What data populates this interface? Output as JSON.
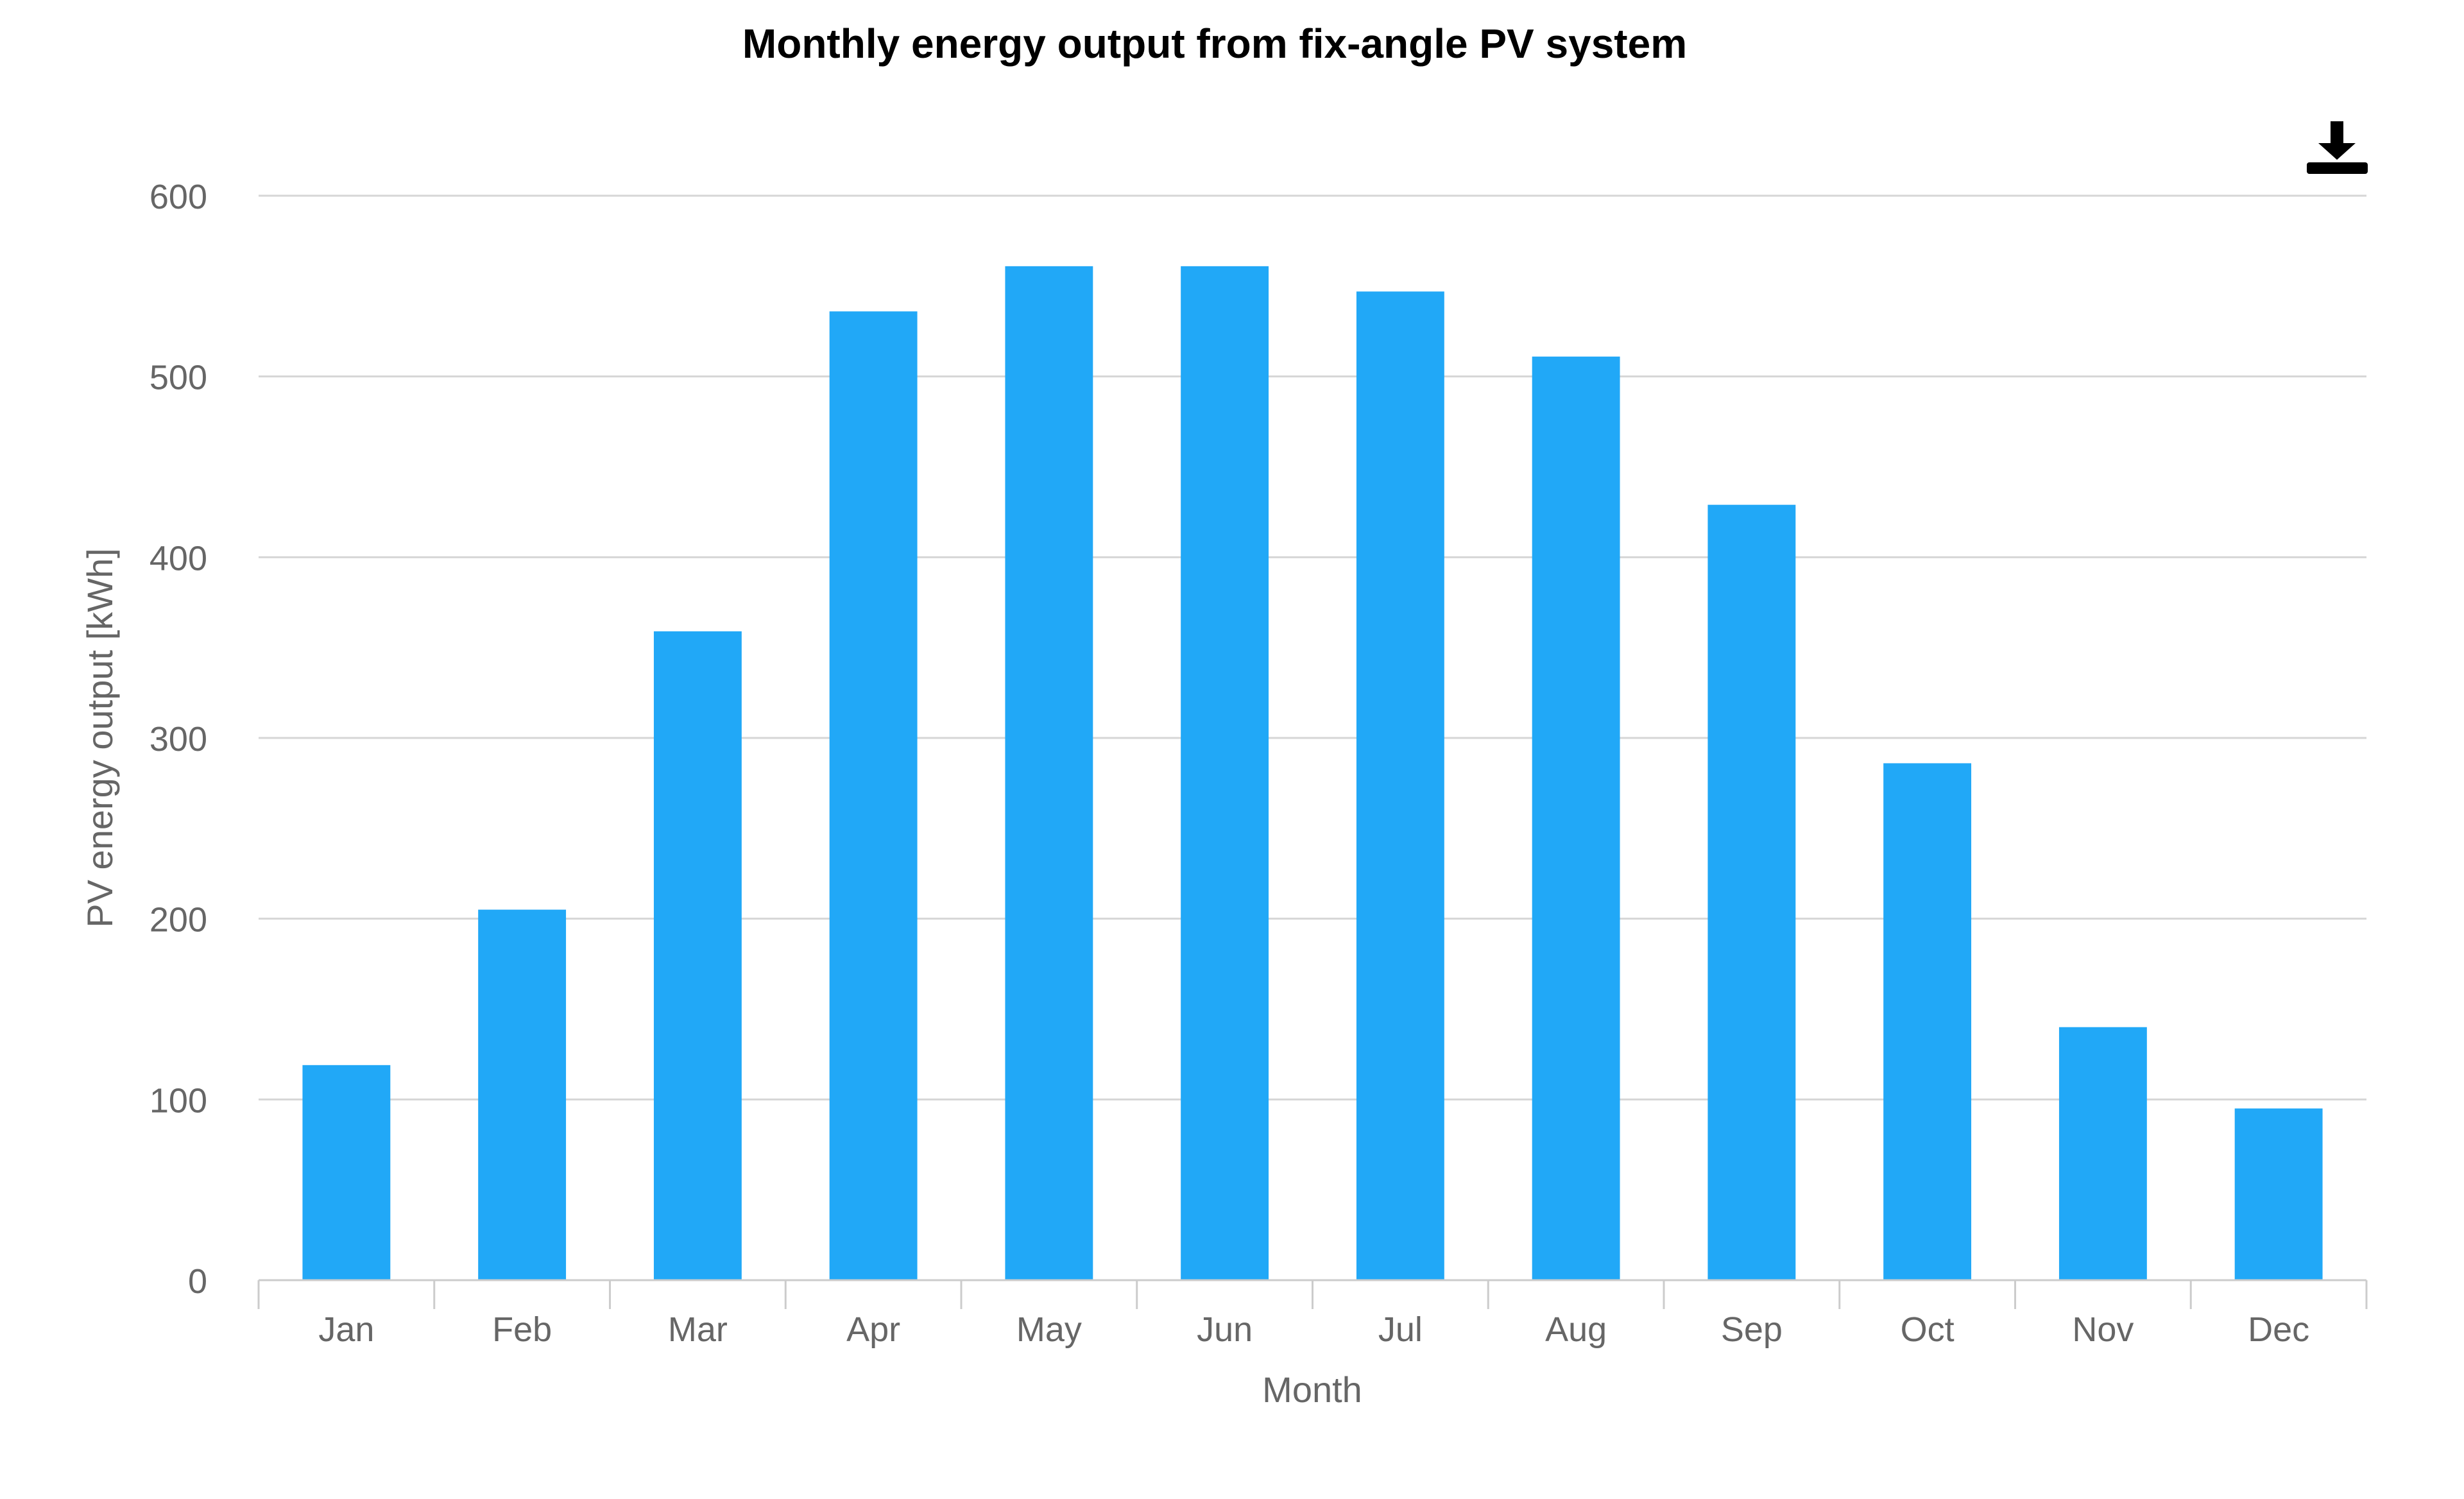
{
  "chart_data": {
    "type": "bar",
    "title": "Monthly energy output from fix-angle PV system",
    "xlabel": "Month",
    "ylabel": "PV energy output [kWh]",
    "categories": [
      "Jan",
      "Feb",
      "Mar",
      "Apr",
      "May",
      "Jun",
      "Jul",
      "Aug",
      "Sep",
      "Oct",
      "Nov",
      "Dec"
    ],
    "values": [
      119,
      205,
      359,
      536,
      561,
      561,
      547,
      511,
      429,
      286,
      140,
      95
    ],
    "ylim": [
      0,
      600
    ],
    "yticks": [
      0,
      100,
      200,
      300,
      400,
      500,
      600
    ],
    "grid": true,
    "bar_color": "#21a8f7"
  },
  "toolbar": {
    "download_icon": "download-icon"
  }
}
